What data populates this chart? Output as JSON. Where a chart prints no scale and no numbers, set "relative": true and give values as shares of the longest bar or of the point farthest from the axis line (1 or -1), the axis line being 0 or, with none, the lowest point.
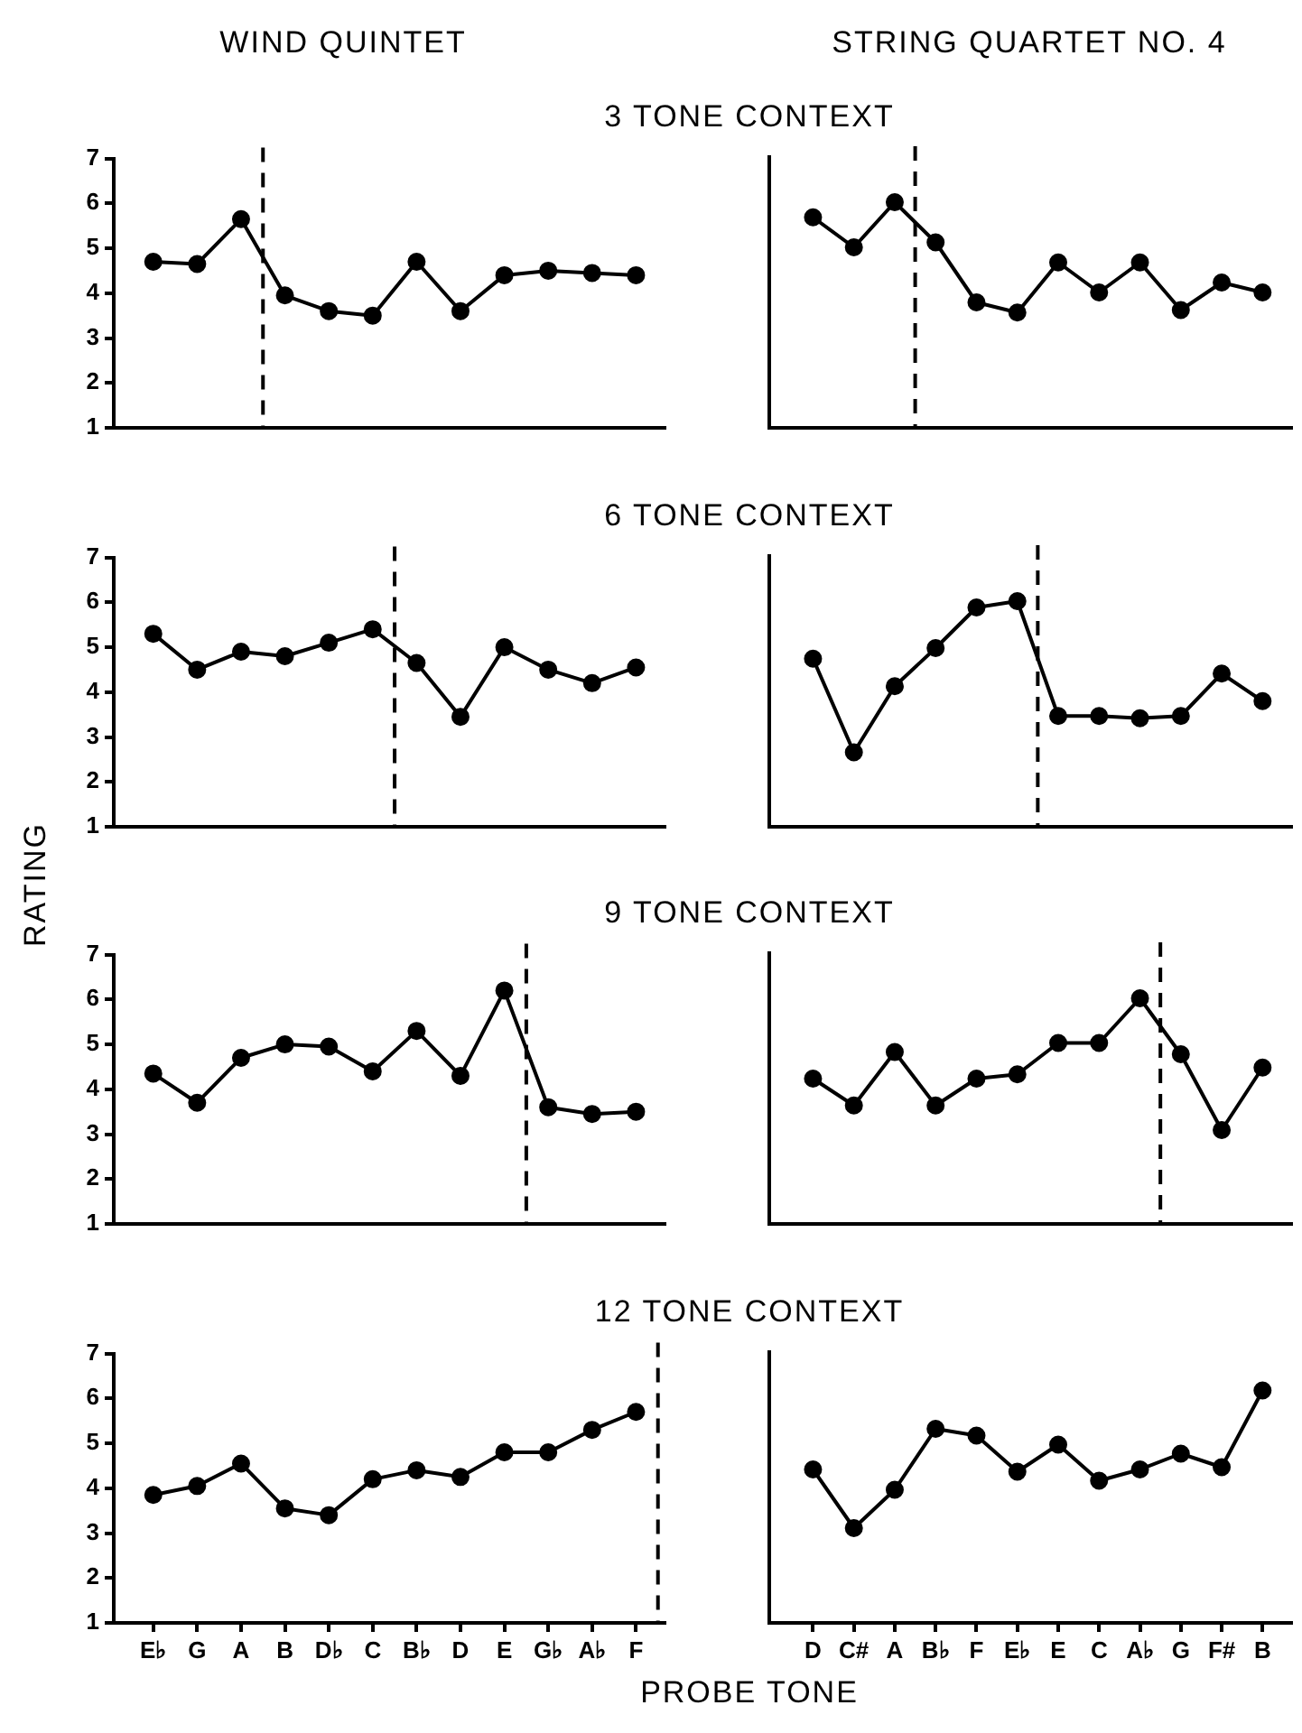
{
  "chart_data": [
    {
      "type": "line",
      "title": "WIND QUINTET",
      "subtitle": "3 TONE CONTEXT",
      "categories": [
        null,
        null,
        null,
        null,
        null,
        null,
        null,
        null,
        null,
        null,
        null,
        null
      ],
      "values": [
        4.7,
        4.65,
        5.65,
        3.95,
        3.6,
        3.5,
        4.7,
        3.6,
        4.4,
        4.5,
        4.45,
        4.4
      ],
      "color": "#000000",
      "marker": "circle",
      "ylim": [
        1,
        7
      ],
      "yticks": [
        1,
        2,
        3,
        4,
        5,
        6,
        7
      ],
      "tick_labels": "y"
    },
    {
      "type": "line",
      "title": "STRING QUARTET NO. 4",
      "categories": [
        null,
        null,
        null,
        null,
        null,
        null,
        null,
        null,
        null,
        null,
        null,
        null
      ],
      "values": [
        0.933,
        0.8,
        1,
        0.822,
        0.556,
        0.511,
        0.733,
        0.6,
        0.733,
        0.522,
        0.644,
        0.6
      ],
      "color": "#000000",
      "marker": "circle",
      "relative": true,
      "tick_labels": false
    },
    {
      "type": "line",
      "subtitle": "6 TONE CONTEXT",
      "categories": [
        null,
        null,
        null,
        null,
        null,
        null,
        null,
        null,
        null,
        null,
        null,
        null
      ],
      "values": [
        5.3,
        4.5,
        4.9,
        4.8,
        5.1,
        5.4,
        4.65,
        3.45,
        5.0,
        4.5,
        4.2,
        4.55
      ],
      "color": "#000000",
      "marker": "circle",
      "ylim": [
        1,
        7
      ],
      "yticks": [
        1,
        2,
        3,
        4,
        5,
        6,
        7
      ],
      "tick_labels": "y"
    },
    {
      "type": "line",
      "categories": [
        null,
        null,
        null,
        null,
        null,
        null,
        null,
        null,
        null,
        null,
        null,
        null
      ],
      "values": [
        0.745,
        0.33,
        0.623,
        0.792,
        0.972,
        1,
        0.491,
        0.491,
        0.481,
        0.491,
        0.679,
        0.557
      ],
      "color": "#000000",
      "marker": "circle",
      "relative": true,
      "tick_labels": false
    },
    {
      "type": "line",
      "subtitle": "9 TONE CONTEXT",
      "ylabel": "RATING",
      "categories": [
        null,
        null,
        null,
        null,
        null,
        null,
        null,
        null,
        null,
        null,
        null,
        null
      ],
      "values": [
        4.35,
        3.7,
        4.7,
        5.0,
        4.95,
        4.4,
        5.3,
        4.3,
        6.2,
        3.6,
        3.45,
        3.5
      ],
      "color": "#000000",
      "marker": "circle",
      "ylim": [
        1,
        7
      ],
      "yticks": [
        1,
        2,
        3,
        4,
        5,
        6,
        7
      ],
      "tick_labels": "y"
    },
    {
      "type": "line",
      "categories": [
        null,
        null,
        null,
        null,
        null,
        null,
        null,
        null,
        null,
        null,
        null,
        null
      ],
      "values": [
        0.644,
        0.525,
        0.762,
        0.525,
        0.644,
        0.663,
        0.802,
        0.802,
        1,
        0.752,
        0.416,
        0.693
      ],
      "color": "#000000",
      "marker": "circle",
      "relative": true,
      "tick_labels": false
    },
    {
      "type": "line",
      "subtitle": "12 TONE CONTEXT",
      "xlabel": "PROBE TONE",
      "categories": [
        "E♭",
        "G",
        "A",
        "B",
        "D♭",
        "C",
        "B♭",
        "D",
        "E",
        "G♭",
        "A♭",
        "F"
      ],
      "values": [
        3.85,
        4.05,
        4.55,
        3.55,
        3.4,
        4.2,
        4.4,
        4.25,
        4.8,
        4.8,
        5.3,
        5.7
      ],
      "color": "#000000",
      "marker": "circle",
      "ylim": [
        1,
        7
      ],
      "yticks": [
        1,
        2,
        3,
        4,
        5,
        6,
        7
      ]
    },
    {
      "type": "line",
      "categories": [
        "D",
        "C#",
        "A",
        "B♭",
        "F",
        "E♭",
        "E",
        "C",
        "A♭",
        "G",
        "F#",
        "B"
      ],
      "values": [
        4.4,
        3.1,
        3.95,
        5.3,
        5.15,
        4.35,
        4.95,
        4.15,
        4.4,
        4.75,
        4.45,
        6.15
      ],
      "color": "#000000",
      "marker": "circle",
      "ylim": [
        1,
        7
      ],
      "tick_labels": "x"
    }
  ]
}
